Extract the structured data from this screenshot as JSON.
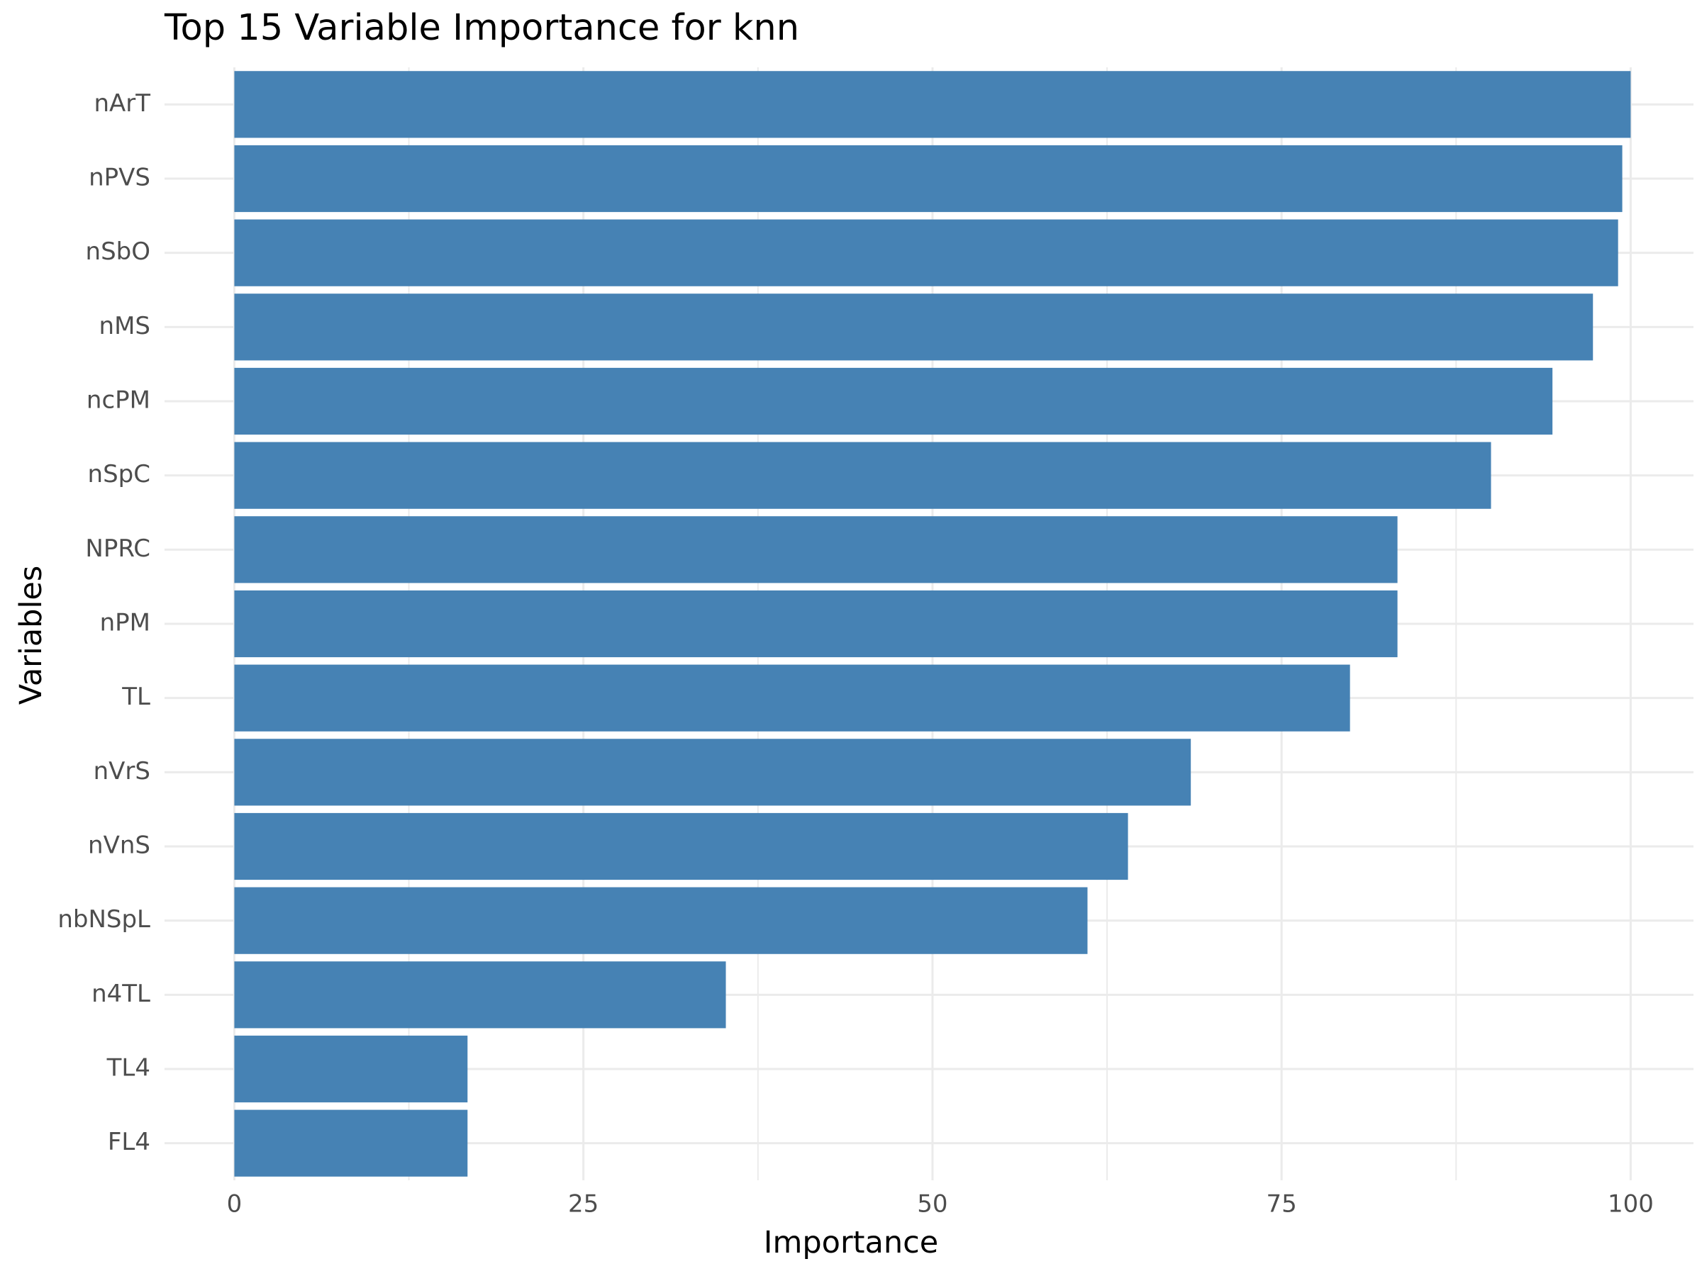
{
  "chart_data": {
    "type": "bar",
    "orientation": "horizontal",
    "title": "Top 15 Variable Importance for knn",
    "xlabel": "Importance",
    "ylabel": "Variables",
    "categories": [
      "nArT",
      "nPVS",
      "nSbO",
      "nMS",
      "ncPM",
      "nSpC",
      "NPRC",
      "nPM",
      "TL",
      "nVrS",
      "nVnS",
      "nbNSpL",
      "n4TL",
      "TL4",
      "FL4"
    ],
    "values": [
      100,
      99.4,
      99.1,
      97.3,
      94.4,
      90.0,
      83.3,
      83.3,
      79.9,
      68.5,
      64.0,
      61.1,
      35.2,
      16.7,
      16.7
    ],
    "xlim": [
      -5,
      104.5
    ],
    "x_ticks": [
      0,
      25,
      50,
      75,
      100
    ],
    "x_tick_labels": [
      "0",
      "25",
      "50",
      "75",
      "100"
    ],
    "grid": true,
    "bar_color": "#4682B4"
  }
}
